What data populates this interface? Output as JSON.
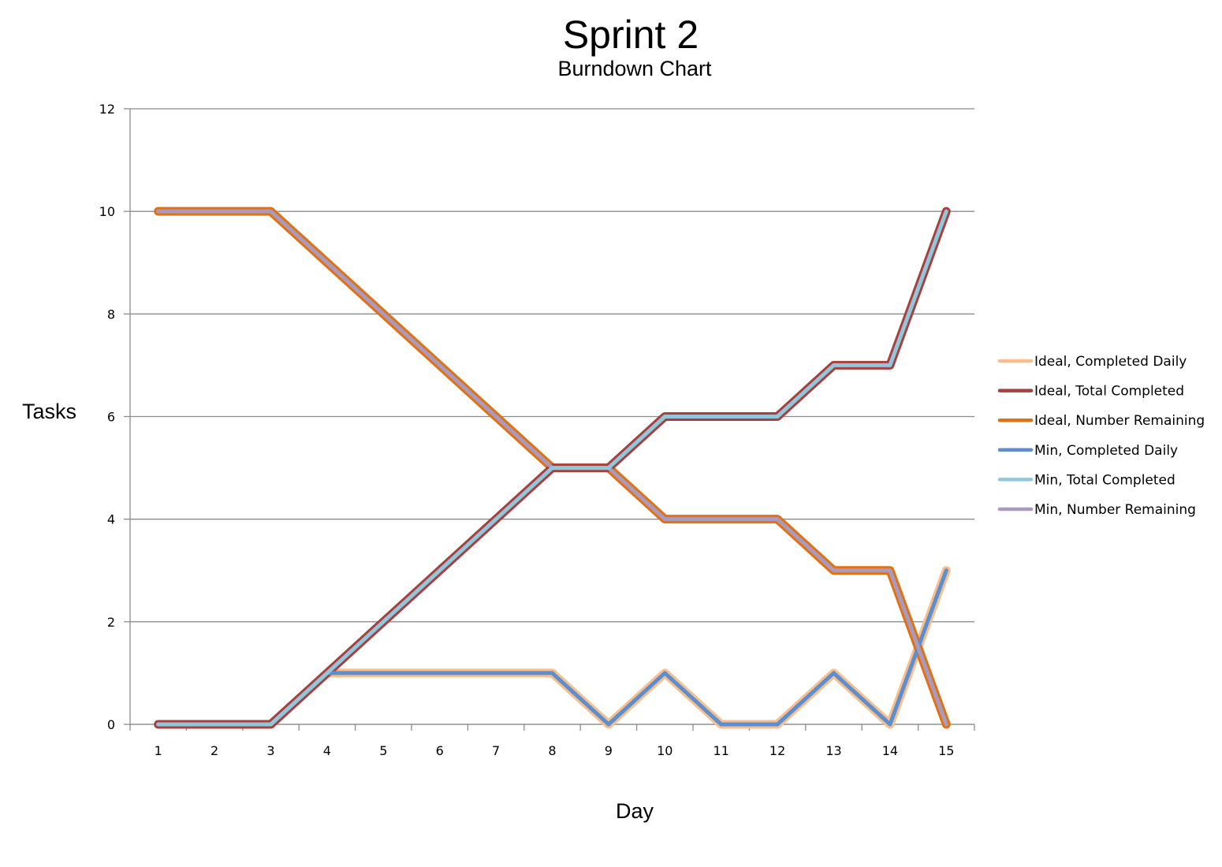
{
  "chart_data": {
    "type": "line",
    "title": "Sprint 2",
    "subtitle": "Burndown Chart",
    "xlabel": "Day",
    "ylabel": "Tasks",
    "x": [
      1,
      2,
      3,
      4,
      5,
      6,
      7,
      8,
      9,
      10,
      11,
      12,
      13,
      14,
      15
    ],
    "x_tick_labels": [
      "1",
      "2",
      "3",
      "4",
      "5",
      "6",
      "7",
      "8",
      "9",
      "10",
      "11",
      "12",
      "13",
      "14",
      "15"
    ],
    "ylim": [
      0,
      12
    ],
    "y_ticks": [
      0,
      2,
      4,
      6,
      8,
      10,
      12
    ],
    "y_tick_labels": [
      "0",
      "2",
      "4",
      "6",
      "8",
      "10",
      "12"
    ],
    "grid": true,
    "legend_position": "right",
    "series": [
      {
        "name": "Ideal, Completed Daily",
        "color": "#F9BE8D",
        "values": [
          0,
          0,
          0,
          1,
          1,
          1,
          1,
          1,
          0,
          1,
          0,
          0,
          1,
          0,
          3
        ]
      },
      {
        "name": "Ideal, Total Completed",
        "color": "#A5413F",
        "values": [
          0,
          0,
          0,
          1,
          2,
          3,
          4,
          5,
          5,
          6,
          6,
          6,
          7,
          7,
          10
        ]
      },
      {
        "name": "Ideal, Number Remaining",
        "color": "#E4700F",
        "values": [
          10,
          10,
          10,
          9,
          8,
          7,
          6,
          5,
          5,
          4,
          4,
          4,
          3,
          3,
          0
        ]
      },
      {
        "name": "Min, Completed Daily",
        "color": "#5B8FCF",
        "values": [
          0,
          0,
          0,
          1,
          1,
          1,
          1,
          1,
          0,
          1,
          0,
          0,
          1,
          0,
          3
        ]
      },
      {
        "name": "Min, Total Completed",
        "color": "#92C6DB",
        "values": [
          0,
          0,
          0,
          1,
          2,
          3,
          4,
          5,
          5,
          6,
          6,
          6,
          7,
          7,
          10
        ]
      },
      {
        "name": "Min, Number Remaining",
        "color": "#A79BC0",
        "values": [
          10,
          10,
          10,
          9,
          8,
          7,
          6,
          5,
          5,
          4,
          4,
          4,
          3,
          3,
          0
        ]
      }
    ]
  }
}
